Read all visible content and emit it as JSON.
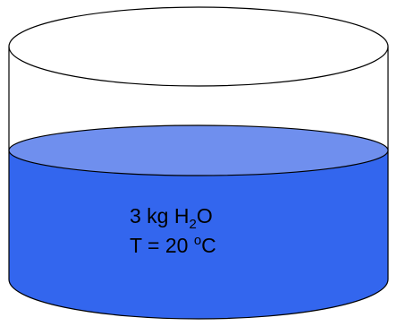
{
  "colors": {
    "water_fill": "#3366ee",
    "water_surface": "#6f8fee",
    "outline": "#000000",
    "background": "#ffffff"
  },
  "label": {
    "mass_value": "3 kg H",
    "mass_subscript": "2",
    "mass_suffix": "O",
    "temp_prefix": "T = 20 ",
    "temp_superscript": "o",
    "temp_unit": "C"
  }
}
